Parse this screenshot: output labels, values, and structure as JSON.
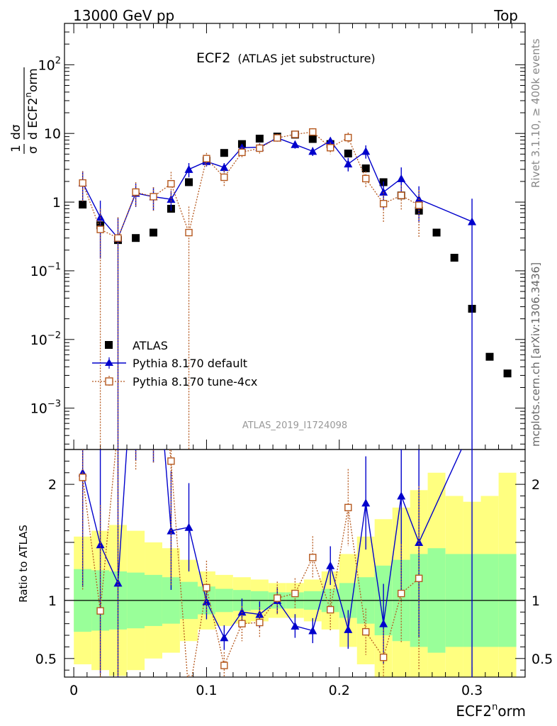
{
  "header": {
    "left": "13000 GeV pp",
    "right": "Top"
  },
  "side": {
    "rivet": "Rivet 3.1.10, ≥ 400k events",
    "mcplots": "mcplots.cern.ch [arXiv:1306.3436]"
  },
  "chart_data": {
    "type": "scatter",
    "title_main": "ECF2",
    "title_sub": "(ATLAS jet substructure)",
    "watermark": "ATLAS_2019_I1724098",
    "xlabel": "ECF2norm",
    "ylabel_main": "1/σ dσ/d ECF2norm",
    "ylabel_ratio": "Ratio to ATLAS",
    "xlim": [
      -0.007,
      0.34
    ],
    "ylim_main": [
      0.00025,
      400
    ],
    "ylog": true,
    "ylim_ratio": [
      0.34,
      2.3
    ],
    "x_ticks": [
      {
        "v": 0,
        "label": "0"
      },
      {
        "v": 0.1,
        "label": "0.1"
      },
      {
        "v": 0.2,
        "label": "0.2"
      },
      {
        "v": 0.3,
        "label": "0.3"
      }
    ],
    "main_yticks": [
      {
        "v": 0.001,
        "base": "10",
        "exp": "−3"
      },
      {
        "v": 0.01,
        "base": "10",
        "exp": "−2"
      },
      {
        "v": 0.1,
        "base": "10",
        "exp": "−1"
      },
      {
        "v": 1,
        "base": "1",
        "exp": ""
      },
      {
        "v": 10,
        "base": "10",
        "exp": ""
      },
      {
        "v": 100,
        "base": "10",
        "exp": "2"
      }
    ],
    "ratio_yticks": [
      {
        "v": 0.5,
        "label": "0.5"
      },
      {
        "v": 1,
        "label": "1"
      },
      {
        "v": 2,
        "label": "2"
      }
    ],
    "bins": [
      0.0067,
      0.02,
      0.0333,
      0.0467,
      0.06,
      0.0733,
      0.0867,
      0.1,
      0.1133,
      0.1267,
      0.14,
      0.1533,
      0.1667,
      0.18,
      0.1933,
      0.2067,
      0.22,
      0.2333,
      0.2467,
      0.26,
      0.2733,
      0.2867,
      0.3,
      0.3133,
      0.3267
    ],
    "bin_width": 0.01333,
    "atlas": [
      0.92,
      0.46,
      0.28,
      0.3,
      0.36,
      0.8,
      1.95,
      4.0,
      5.2,
      7.0,
      8.4,
      9.0,
      9.6,
      8.3,
      7.0,
      5.1,
      3.1,
      1.95,
      1.25,
      0.75,
      0.36,
      0.155,
      0.028,
      0.0056,
      0.0032
    ],
    "band_inner": [
      0.27,
      0.26,
      0.25,
      0.24,
      0.22,
      0.2,
      0.16,
      0.12,
      0.1,
      0.09,
      0.08,
      0.07,
      0.07,
      0.08,
      0.1,
      0.15,
      0.2,
      0.3,
      0.35,
      0.4,
      0.45,
      0.4,
      0.4,
      0.4,
      0.4
    ],
    "band_outer": [
      0.55,
      0.6,
      0.65,
      0.6,
      0.5,
      0.45,
      0.35,
      0.25,
      0.22,
      0.2,
      0.18,
      0.15,
      0.15,
      0.18,
      0.25,
      0.4,
      0.55,
      0.7,
      0.8,
      0.95,
      1.1,
      0.9,
      0.85,
      0.9,
      1.1
    ],
    "series": [
      {
        "name": "ATLAS",
        "color": "#000000",
        "marker": "square"
      },
      {
        "name": "Pythia 8.170 default",
        "color": "#0000cc",
        "marker": "triangle",
        "x": [
          0.0067,
          0.02,
          0.0333,
          0.0467,
          0.06,
          0.0733,
          0.0867,
          0.1,
          0.1133,
          0.1267,
          0.14,
          0.1533,
          0.1667,
          0.18,
          0.1933,
          0.2067,
          0.22,
          0.2333,
          0.2467,
          0.26,
          0.3
        ],
        "values": [
          1.92,
          0.6,
          0.3,
          1.35,
          1.2,
          1.1,
          3.0,
          3.9,
          3.2,
          6.2,
          6.3,
          8.6,
          6.9,
          5.5,
          7.8,
          3.6,
          5.5,
          1.4,
          2.2,
          1.1,
          0.52
        ],
        "err_lo": [
          0.9,
          0.45,
          0.3,
          0.5,
          0.45,
          0.35,
          0.7,
          0.6,
          0.5,
          0.8,
          0.8,
          1.0,
          0.9,
          0.8,
          1.0,
          0.8,
          1.2,
          0.6,
          1.0,
          0.6,
          0.52
        ],
        "err_hi": [
          0.9,
          0.45,
          0.3,
          0.5,
          0.45,
          0.35,
          0.7,
          0.6,
          0.5,
          0.8,
          0.8,
          1.0,
          0.9,
          0.8,
          1.0,
          0.8,
          1.2,
          0.6,
          1.0,
          0.6,
          0.6
        ],
        "ratio": [
          2.1,
          1.48,
          1.15,
          3.5,
          3.5,
          1.6,
          1.63,
          0.99,
          0.68,
          0.9,
          0.88,
          1.0,
          0.78,
          0.74,
          1.3,
          0.75,
          1.84,
          0.8,
          1.9,
          1.5,
          2.5
        ]
      },
      {
        "name": "Pythia 8.170 tune-4cx",
        "color": "#b5581e",
        "marker": "open-square",
        "x": [
          0.0067,
          0.02,
          0.0333,
          0.0467,
          0.06,
          0.0733,
          0.0867,
          0.1,
          0.1133,
          0.1267,
          0.14,
          0.1533,
          0.1667,
          0.18,
          0.1933,
          0.2067,
          0.22,
          0.2333,
          0.2467,
          0.26
        ],
        "values": [
          1.9,
          0.4,
          0.3,
          1.4,
          1.2,
          1.85,
          0.36,
          4.3,
          2.3,
          5.3,
          6.1,
          8.6,
          9.7,
          10.5,
          6.2,
          8.7,
          2.2,
          0.95,
          1.25,
          0.9
        ],
        "err_lo": [
          0.9,
          0.4,
          0.3,
          0.55,
          0.45,
          0.9,
          0.36,
          0.9,
          0.6,
          1.0,
          1.0,
          1.2,
          1.2,
          1.4,
          1.2,
          1.6,
          0.6,
          0.45,
          0.5,
          0.6
        ],
        "err_hi": [
          0.9,
          0.4,
          0.3,
          0.55,
          0.45,
          0.9,
          0.5,
          0.9,
          0.6,
          1.0,
          1.0,
          1.2,
          1.2,
          1.4,
          1.2,
          1.6,
          0.6,
          0.45,
          0.5,
          0.6
        ],
        "ratio": [
          2.06,
          0.91,
          2.5,
          3.5,
          3.5,
          2.2,
          0.18,
          1.11,
          0.44,
          0.8,
          0.81,
          1.02,
          1.06,
          1.37,
          0.92,
          1.8,
          0.73,
          0.51,
          1.06,
          1.19
        ]
      }
    ]
  }
}
